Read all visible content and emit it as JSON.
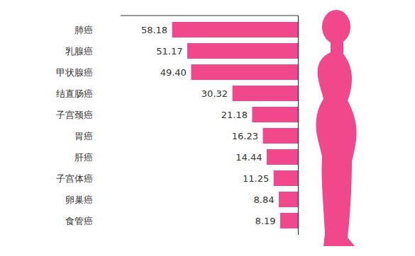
{
  "chart_data": {
    "type": "bar",
    "orientation": "horizontal",
    "categories": [
      "肺癌",
      "乳腺癌",
      "甲状腺癌",
      "结直肠癌",
      "子宫颈癌",
      "胃癌",
      "肝癌",
      "子宫体癌",
      "卵巢癌",
      "食管癌"
    ],
    "values": [
      58.18,
      51.17,
      49.4,
      30.32,
      21.18,
      16.23,
      14.44,
      11.25,
      8.84,
      8.19
    ],
    "value_labels": [
      "58.18",
      "51.17",
      "49.40",
      "30.32",
      "21.18",
      "16.23",
      "14.44",
      "11.25",
      "8.84",
      "8.19"
    ],
    "color": "#f0488b",
    "xlim": [
      0,
      82
    ],
    "data_labels": true,
    "tick_labels": "y",
    "grid": false
  }
}
